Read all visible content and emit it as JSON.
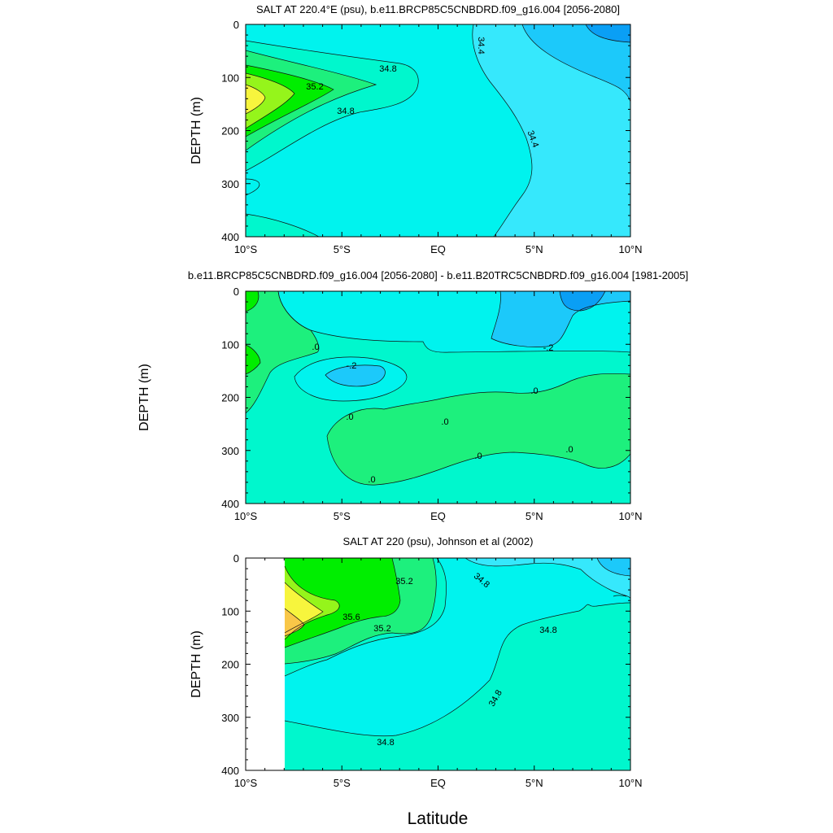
{
  "figure": {
    "xlabel": "Latitude"
  },
  "chart_data": [
    {
      "type": "contour",
      "title": "SALT AT 220.4°E (psu), b.e11.BRCP85C5CNBDRD.f09_g16.004 [2056-2080]",
      "ylabel": "DEPTH (m)",
      "xlim": [
        -10,
        10
      ],
      "ylim": [
        400,
        0
      ],
      "x_tick_labels": [
        "10°S",
        "5°S",
        "EQ",
        "5°N",
        "10°N"
      ],
      "y_tick_labels": [
        "0",
        "100",
        "200",
        "300",
        "400"
      ],
      "contour_labels": [
        "35.2",
        "34.8",
        "34.8",
        "34.4",
        "34.4"
      ],
      "levels_shown": [
        34.0,
        34.2,
        34.4,
        34.6,
        34.8,
        35.0,
        35.2,
        35.4,
        35.6
      ],
      "salinity_maximum": {
        "lat": -9.5,
        "depth": 130
      }
    },
    {
      "type": "contour",
      "title": "b.e11.BRCP85C5CNBDRD.f09_g16.004 [2056-2080] - b.e11.B20TRC5CNBDRD.f09_g16.004 [1981-2005]",
      "ylabel": "DEPTH (m)",
      "xlim": [
        -10,
        10
      ],
      "ylim": [
        400,
        0
      ],
      "x_tick_labels": [
        "10°S",
        "5°S",
        "EQ",
        "5°N",
        "10°N"
      ],
      "y_tick_labels": [
        "0",
        "100",
        "200",
        "300",
        "400"
      ],
      "contour_labels": [
        ".0",
        "-.2",
        ".0",
        ".0",
        ".0",
        ".0",
        ".0",
        ".0",
        "-.2"
      ],
      "levels_shown": [
        -0.4,
        -0.2,
        0.0,
        0.2
      ]
    },
    {
      "type": "contour",
      "title": "SALT AT 220 (psu), Johnson et al (2002)",
      "ylabel": "DEPTH (m)",
      "xlim": [
        -10,
        10
      ],
      "ylim": [
        400,
        0
      ],
      "x_tick_labels": [
        "10°S",
        "5°S",
        "EQ",
        "5°N",
        "10°N"
      ],
      "y_tick_labels": [
        "0",
        "100",
        "200",
        "300",
        "400"
      ],
      "contour_labels": [
        "35.2",
        "35.6",
        "35.2",
        "34.8",
        "34.8",
        "34.8",
        "34.8"
      ],
      "levels_shown": [
        34.4,
        34.6,
        34.8,
        35.0,
        35.2,
        35.4,
        35.6,
        35.8
      ],
      "data_gap": {
        "lat_start": -10,
        "lat_end": -8
      }
    }
  ],
  "colors": {
    "background": "#ffffff",
    "s_34_0": "#0a9ff5",
    "s_34_2": "#1cc9fa",
    "s_34_4": "#36e8fc",
    "s_34_6": "#00f3ee",
    "s_34_8": "#00f7cd",
    "s_35_0": "#1df07d",
    "s_35_2": "#00ee00",
    "s_35_4": "#95f51b",
    "s_35_6": "#f7f53d",
    "s_35_8": "#f9c748"
  }
}
